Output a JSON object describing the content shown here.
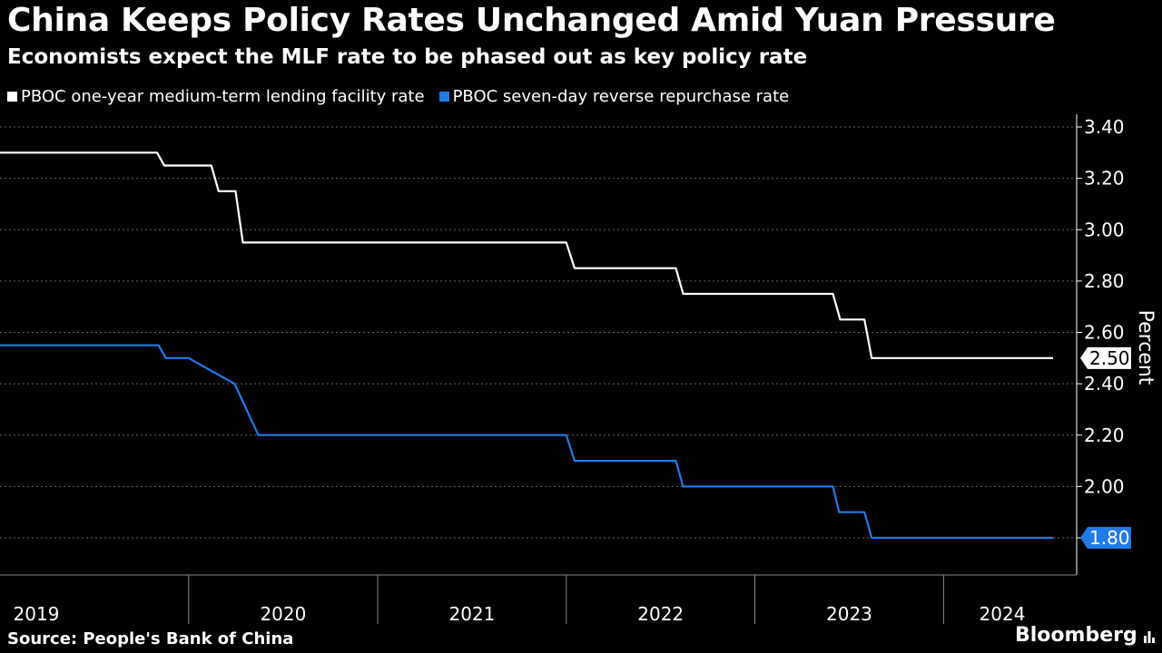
{
  "title": "China Keeps Policy Rates Unchanged Amid Yuan Pressure",
  "subtitle": "Economists expect the MLF rate to be phased out as key policy rate",
  "source": "Source: People's Bank of China",
  "brand": "Bloomberg",
  "colors": {
    "background": "#000000",
    "mlf": "#ffffff",
    "repo": "#1f7be6",
    "grid": "#666666"
  },
  "chart_data": {
    "type": "line",
    "ylabel": "Percent",
    "ylim": [
      1.6,
      3.4
    ],
    "yticks": [
      "3.40",
      "3.20",
      "3.00",
      "2.80",
      "2.60",
      "2.40",
      "2.20",
      "2.00",
      "1.80"
    ],
    "xlim": [
      "2019-01-01",
      "2024-07-31"
    ],
    "xlabels": [
      "2019",
      "2020",
      "2021",
      "2022",
      "2023",
      "2024"
    ],
    "grid": true,
    "legend_position": "top-left",
    "series": [
      {
        "name": "PBOC one-year medium-term lending facility rate",
        "end_label": "2.50",
        "points": [
          [
            "2019-01-01",
            3.3
          ],
          [
            "2019-11-01",
            3.3
          ],
          [
            "2019-11-15",
            3.25
          ],
          [
            "2020-02-14",
            3.25
          ],
          [
            "2020-02-28",
            3.15
          ],
          [
            "2020-04-01",
            3.15
          ],
          [
            "2020-04-15",
            2.95
          ],
          [
            "2022-01-01",
            2.95
          ],
          [
            "2022-01-17",
            2.85
          ],
          [
            "2022-08-01",
            2.85
          ],
          [
            "2022-08-15",
            2.75
          ],
          [
            "2023-06-01",
            2.75
          ],
          [
            "2023-06-15",
            2.65
          ],
          [
            "2023-08-01",
            2.65
          ],
          [
            "2023-08-15",
            2.5
          ],
          [
            "2024-07-31",
            2.5
          ]
        ]
      },
      {
        "name": "PBOC seven-day reverse repurchase rate",
        "end_label": "1.80",
        "points": [
          [
            "2019-01-01",
            2.55
          ],
          [
            "2019-11-04",
            2.55
          ],
          [
            "2019-11-18",
            2.5
          ],
          [
            "2020-01-01",
            2.5
          ],
          [
            "2020-03-30",
            2.4
          ],
          [
            "2020-05-15",
            2.2
          ],
          [
            "2022-01-01",
            2.2
          ],
          [
            "2022-01-17",
            2.1
          ],
          [
            "2022-08-01",
            2.1
          ],
          [
            "2022-08-15",
            2.0
          ],
          [
            "2023-06-01",
            2.0
          ],
          [
            "2023-06-13",
            1.9
          ],
          [
            "2023-08-01",
            1.9
          ],
          [
            "2023-08-15",
            1.8
          ],
          [
            "2024-07-31",
            1.8
          ]
        ]
      }
    ]
  }
}
